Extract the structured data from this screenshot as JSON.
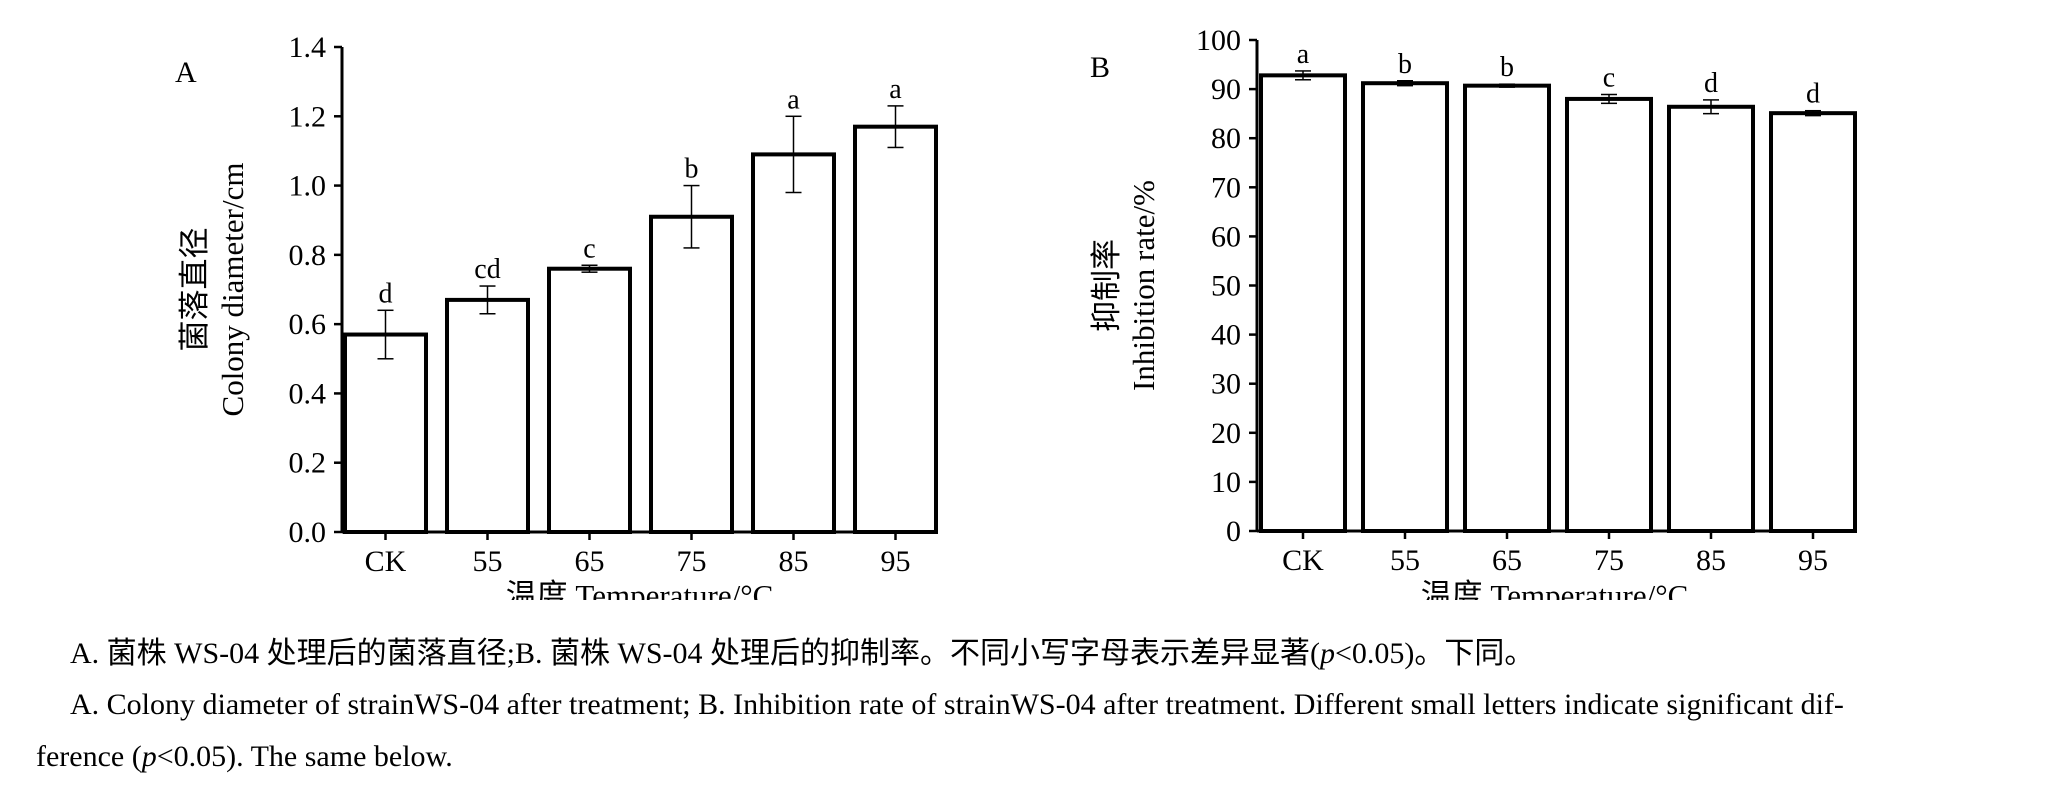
{
  "chart_data": [
    {
      "type": "bar",
      "panel_label": "A",
      "categories": [
        "CK",
        "55",
        "65",
        "75",
        "85",
        "95"
      ],
      "values": [
        0.57,
        0.67,
        0.76,
        0.91,
        1.09,
        1.17
      ],
      "errors": [
        0.07,
        0.04,
        0.01,
        0.09,
        0.11,
        0.06
      ],
      "significance": [
        "d",
        "cd",
        "c",
        "b",
        "a",
        "a"
      ],
      "ylim": [
        0,
        1.4
      ],
      "yticks": [
        "0.0",
        "0.2",
        "0.4",
        "0.6",
        "0.8",
        "1.0",
        "1.2",
        "1.4"
      ],
      "ylabel_cn": "菌落直径",
      "ylabel_en": "Colony diameter/cm",
      "xlabel": "温度 Temperature/°C",
      "grid": false
    },
    {
      "type": "bar",
      "panel_label": "B",
      "categories": [
        "CK",
        "55",
        "65",
        "75",
        "85",
        "95"
      ],
      "values": [
        92.8,
        91.2,
        90.7,
        88.0,
        86.4,
        85.1
      ],
      "errors": [
        0.9,
        0.5,
        0.3,
        0.9,
        1.4,
        0.5
      ],
      "significance": [
        "a",
        "b",
        "b",
        "c",
        "d",
        "d"
      ],
      "ylim": [
        0,
        100
      ],
      "yticks": [
        "0",
        "10",
        "20",
        "30",
        "40",
        "50",
        "60",
        "70",
        "80",
        "90",
        "100"
      ],
      "ylabel_cn": "抑制率",
      "ylabel_en": "Inhibition rate/%",
      "xlabel": "温度 Temperature/°C",
      "grid": false
    }
  ],
  "caption": {
    "cn_main": "A. 菌株 WS-04 处理后的菌落直径;B. 菌株 WS-04 处理后的抑制率。不同小写字母表示差异显著(",
    "cn_p": "p",
    "cn_tail": "<0.05)。下同。",
    "en_line1": "A. Colony diameter of strainWS-04 after treatment; B. Inhibition rate of strainWS-04 after treatment. Different small letters indicate significant dif-",
    "en_line2_pre": "ference (",
    "en_p": "p",
    "en_line2_post": "<0.05). The same below."
  }
}
